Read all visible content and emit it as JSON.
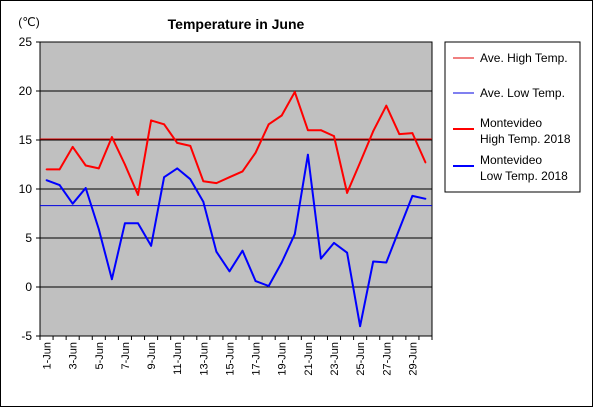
{
  "chart_data": {
    "type": "line",
    "title": "Temperature in June",
    "unit_label": "(℃)",
    "ylim": [
      -5,
      25
    ],
    "yticks": [
      -5,
      0,
      5,
      10,
      15,
      20,
      25
    ],
    "grid": true,
    "legend_position": "right",
    "x_ticks": [
      "1-Jun",
      "3-Jun",
      "5-Jun",
      "7-Jun",
      "9-Jun",
      "11-Jun",
      "13-Jun",
      "15-Jun",
      "17-Jun",
      "19-Jun",
      "21-Jun",
      "23-Jun",
      "25-Jun",
      "27-Jun",
      "29-Jun"
    ],
    "days": [
      1,
      2,
      3,
      4,
      5,
      6,
      7,
      8,
      9,
      10,
      11,
      12,
      13,
      14,
      15,
      16,
      17,
      18,
      19,
      20,
      21,
      22,
      23,
      24,
      25,
      26,
      27,
      28,
      29,
      30
    ],
    "series": [
      {
        "name": "Ave. High Temp.",
        "kind": "constant",
        "color": "#e00000",
        "value": 15.1
      },
      {
        "name": "Ave. Low Temp.",
        "kind": "constant",
        "color": "#0000e0",
        "value": 8.3
      },
      {
        "name": "Montevideo High Temp. 2018",
        "name_lines": [
          "Montevideo",
          "High Temp. 2018"
        ],
        "kind": "daily",
        "color": "#ff0000",
        "values": [
          12.0,
          12.0,
          14.3,
          12.4,
          12.1,
          15.3,
          12.5,
          9.4,
          17.0,
          16.6,
          14.7,
          14.4,
          10.8,
          10.6,
          11.2,
          11.8,
          13.7,
          16.6,
          17.5,
          19.9,
          16.0,
          16.0,
          15.4,
          9.6,
          12.7,
          15.9,
          18.5,
          15.6,
          15.7,
          12.7
        ]
      },
      {
        "name": "Montevideo Low Temp. 2018",
        "name_lines": [
          "Montevideo",
          "Low Temp. 2018"
        ],
        "kind": "daily",
        "color": "#0000ff",
        "values": [
          10.9,
          10.4,
          8.5,
          10.1,
          5.9,
          0.8,
          6.5,
          6.5,
          4.2,
          11.2,
          12.1,
          11.0,
          8.7,
          3.6,
          1.6,
          3.7,
          0.6,
          0.1,
          2.5,
          5.4,
          13.5,
          2.9,
          4.5,
          3.5,
          -4.0,
          2.6,
          2.5,
          5.9,
          9.3,
          9.0
        ]
      }
    ]
  }
}
